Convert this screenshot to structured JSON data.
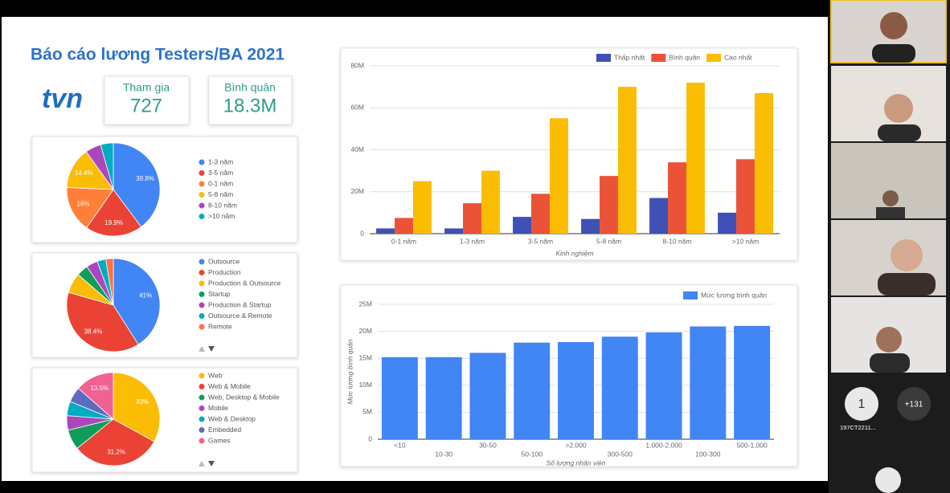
{
  "header": {
    "title": "Báo cáo lương Testers/BA 2021",
    "logo": "tvn"
  },
  "kpis": [
    {
      "label": "Tham gia",
      "value": "727"
    },
    {
      "label": "Bình quân",
      "value": "18.3M"
    }
  ],
  "pies": [
    {
      "type": "pie",
      "labels": [
        "1-3 năm",
        "3-5 năm",
        "0-1 năm",
        "5-8 năm",
        "8-10 năm",
        ">10 năm"
      ],
      "values": [
        39.8,
        19.9,
        16,
        14.4,
        5.5,
        4.4
      ],
      "value_labels": [
        "39.8%",
        "19.9%",
        "16%",
        "14.4%",
        null,
        null
      ],
      "colors": [
        "#4285f4",
        "#ea4335",
        "#ff7f3a",
        "#fbbc04",
        "#ab47bc",
        "#00acc1"
      ]
    },
    {
      "type": "pie",
      "labels": [
        "Outsource",
        "Production",
        "Production & Outsource",
        "Startup",
        "Production & Startup",
        "Outsource & Remote",
        "Remote"
      ],
      "values": [
        41,
        38.4,
        7,
        4,
        4,
        3,
        2.6
      ],
      "value_labels": [
        "41%",
        "38.4%",
        null,
        null,
        null,
        null,
        null
      ],
      "colors": [
        "#4285f4",
        "#ea4335",
        "#fbbc04",
        "#0f9d58",
        "#ab47bc",
        "#00acc1",
        "#ff7043"
      ]
    },
    {
      "type": "pie",
      "labels": [
        "Web",
        "Web & Mobile",
        "Web, Desktop & Mobile",
        "Mobile",
        "Web & Desktop",
        "Embedded",
        "Games"
      ],
      "values": [
        33,
        31.2,
        7,
        5,
        5,
        5.3,
        13.5
      ],
      "value_labels": [
        "33%",
        "31.2%",
        null,
        null,
        null,
        null,
        "13.5%"
      ],
      "colors": [
        "#fbbc04",
        "#ea4335",
        "#0f9d58",
        "#ab47bc",
        "#00acc1",
        "#5c6bc0",
        "#f06292"
      ]
    }
  ],
  "bar_charts": [
    {
      "type": "bar",
      "x_label": "Kinh nghiệm",
      "categories": [
        "0-1 năm",
        "1-3 năm",
        "3-5 năm",
        "5-8 năm",
        "8-10 năm",
        ">10 năm"
      ],
      "series": [
        {
          "name": "Thấp nhất",
          "color": "#3f51b5",
          "values": [
            2.5,
            2.5,
            8,
            7,
            17,
            10
          ]
        },
        {
          "name": "Bình quân",
          "color": "#ea5338",
          "values": [
            7.5,
            14.5,
            19,
            27.5,
            34,
            35.5
          ]
        },
        {
          "name": "Cao nhất",
          "color": "#fbbc04",
          "values": [
            25,
            30,
            55,
            70,
            72,
            67
          ]
        }
      ],
      "ylim": [
        0,
        80
      ],
      "yticks": [
        0,
        {
          "value": 20,
          "label": "20M"
        },
        {
          "value": 40,
          "label": "40M"
        },
        {
          "value": 60,
          "label": "60M"
        },
        {
          "value": 80,
          "label": "80M"
        }
      ],
      "grid": true
    },
    {
      "type": "bar",
      "x_label": "Số lượng nhân viên",
      "y_label": "Mức lương bình quân",
      "categories": [
        "<10",
        "10-30",
        "30-50",
        "50-100",
        ">2.000",
        "300-500",
        "1.000-2.000",
        "100-300",
        "500-1.000"
      ],
      "series": [
        {
          "name": "Mức lương bình quân",
          "color": "#4285f4",
          "values": [
            15.2,
            15.2,
            16,
            17.9,
            18,
            19,
            19.8,
            20.9,
            21
          ]
        }
      ],
      "ylim": [
        0,
        25
      ],
      "yticks": [
        0,
        {
          "value": 5,
          "label": "5M"
        },
        {
          "value": 10,
          "label": "10M"
        },
        {
          "value": 15,
          "label": "15M"
        },
        {
          "value": 20,
          "label": "20M"
        },
        {
          "value": 25,
          "label": "25M"
        }
      ],
      "grid": true
    }
  ],
  "sidebar": {
    "avatar_initial": "1",
    "more_count": "+131",
    "participant_name": "197CT2211..."
  }
}
